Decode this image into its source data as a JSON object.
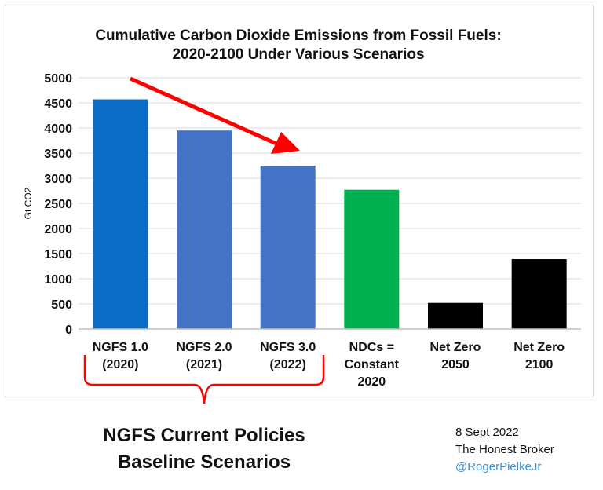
{
  "chart_data": {
    "type": "bar",
    "title_lines": [
      "Cumulative Carbon Dioxide Emissions from Fossil Fuels:",
      "2020-2100 Under Various Scenarios"
    ],
    "ylabel": "Gt CO2",
    "xlabel": "",
    "ylim": [
      0,
      5000
    ],
    "yticks": [
      0,
      500,
      1000,
      1500,
      2000,
      2500,
      3000,
      3500,
      4000,
      4500,
      5000
    ],
    "grid": true,
    "categories": [
      [
        "NGFS 1.0",
        "(2020)"
      ],
      [
        "NGFS 2.0",
        "(2021)"
      ],
      [
        "NGFS 3.0",
        "(2022)"
      ],
      [
        "NDCs =",
        "Constant",
        "2020"
      ],
      [
        "Net Zero",
        "2050"
      ],
      [
        "Net Zero",
        "2100"
      ]
    ],
    "values": [
      4570,
      3950,
      3250,
      2770,
      520,
      1390
    ],
    "colors": [
      "#0a6cc4",
      "#4472c4",
      "#4472c4",
      "#00b050",
      "#000000",
      "#000000"
    ],
    "arrow_color": "#ff0000"
  },
  "group_label": [
    "NGFS Current Policies",
    "Baseline Scenarios"
  ],
  "note": {
    "date": "8 Sept 2022",
    "source": "The Honest Broker",
    "handle": "@RogerPielkeJr"
  }
}
